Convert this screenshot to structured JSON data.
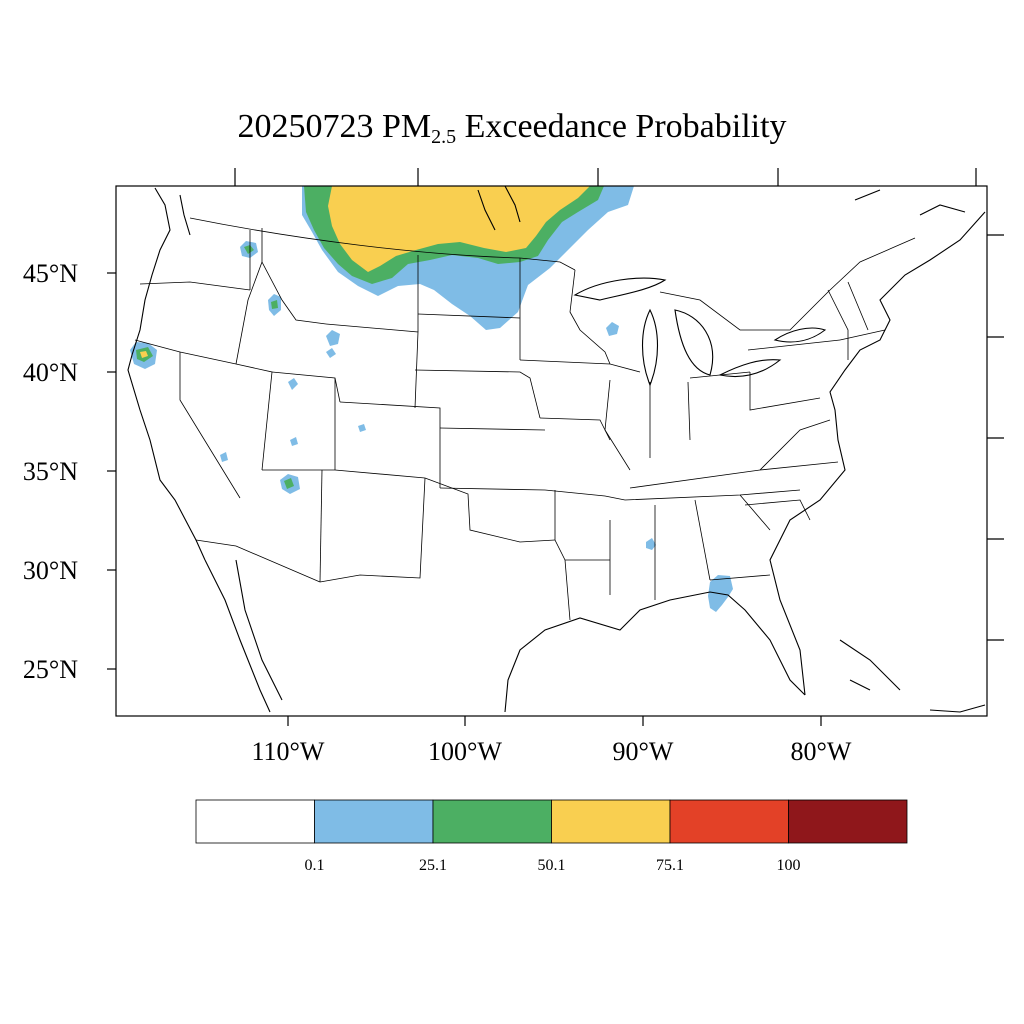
{
  "title": {
    "date": "20250723",
    "pm": "PM",
    "pm_sub": "2.5",
    "rest": "Exceedance Probability"
  },
  "axes": {
    "lat_labels": [
      "45°N",
      "40°N",
      "35°N",
      "30°N",
      "25°N"
    ],
    "lon_labels": [
      "110°W",
      "100°W",
      "90°W",
      "80°W"
    ]
  },
  "colorbar": {
    "labels": [
      "0.1",
      "25.1",
      "50.1",
      "75.1",
      "100"
    ],
    "colors": [
      "#ffffff",
      "#7fbce6",
      "#4caf63",
      "#f9cf50",
      "#e34127",
      "#8f171b"
    ]
  },
  "map_colors": {
    "prob_0_1": "#7fbce6",
    "prob_25_1": "#4caf63",
    "prob_50_1": "#f9cf50"
  }
}
